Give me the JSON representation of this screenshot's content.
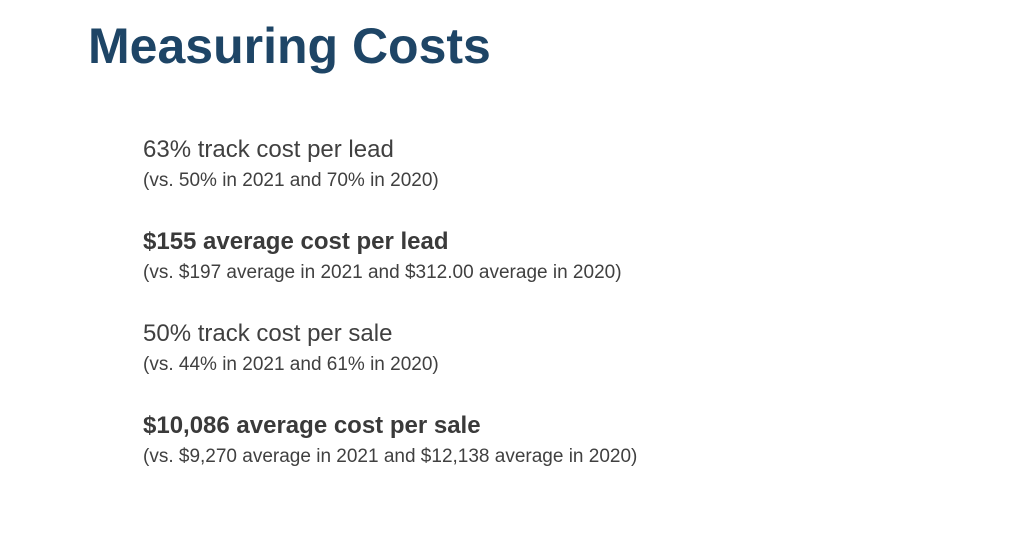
{
  "slide": {
    "title": "Measuring Costs",
    "stats": [
      {
        "main": "63% track cost per lead",
        "sub": "(vs. 50% in 2021 and 70% in 2020)",
        "bold": false
      },
      {
        "main": "$155 average cost per lead",
        "sub": "(vs. $197 average in 2021 and $312.00 average in 2020)",
        "bold": true
      },
      {
        "main": "50% track cost per sale",
        "sub": "(vs. 44% in 2021 and 61% in 2020)",
        "bold": false
      },
      {
        "main": "$10,086 average cost per sale",
        "sub": "(vs. $9,270 average in 2021 and $12,138 average in 2020)",
        "bold": true
      }
    ],
    "colors": {
      "title": "#1e4566",
      "body": "#404040",
      "background": "#ffffff"
    }
  }
}
